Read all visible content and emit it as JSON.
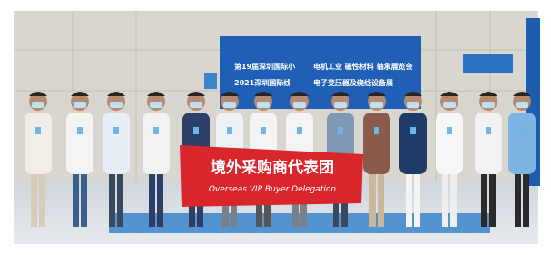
{
  "backdrop": {
    "line1": "第19届深圳国际小",
    "line1b": "电机工业 磁性材料 轴承展览会",
    "line2": "2021深圳国际线",
    "line2b": "电子变压器及绕线设备展"
  },
  "banner": {
    "title": "境外采购商代表团",
    "subtitle": "Overseas VIP Buyer Delegation"
  }
}
